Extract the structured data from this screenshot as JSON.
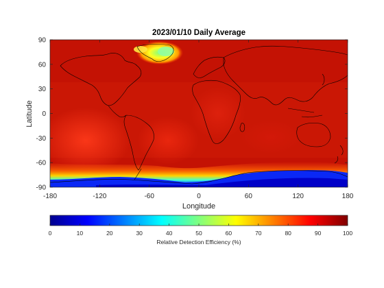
{
  "chart_data": {
    "type": "heatmap",
    "title": "2023/01/10 Daily Average",
    "xlabel": "Longitude",
    "ylabel": "Latitude",
    "xlim": [
      -180,
      180
    ],
    "ylim": [
      -90,
      90
    ],
    "x_ticks": [
      -180,
      -120,
      -60,
      0,
      60,
      120,
      180
    ],
    "y_ticks": [
      90,
      60,
      30,
      0,
      -30,
      -60,
      -90
    ],
    "grid": false,
    "colormap": "jet",
    "colorbar": {
      "label": "Relative Detection Efficiency (%)",
      "range": [
        0,
        100
      ],
      "ticks": [
        0,
        10,
        20,
        30,
        40,
        50,
        60,
        70,
        80,
        90,
        100
      ],
      "orientation": "horizontal",
      "placement": "bottom"
    },
    "field_description_values": {
      "global_background_pct": 95,
      "south_pacific_min_pct": 82,
      "africa_south_atlantic_pct": 88,
      "southern_ocean_band_pct": [
        45,
        75
      ],
      "antarctic_coast_pct": [
        12,
        25
      ],
      "greenland_ice_sheet_pct": [
        55,
        70
      ]
    }
  }
}
